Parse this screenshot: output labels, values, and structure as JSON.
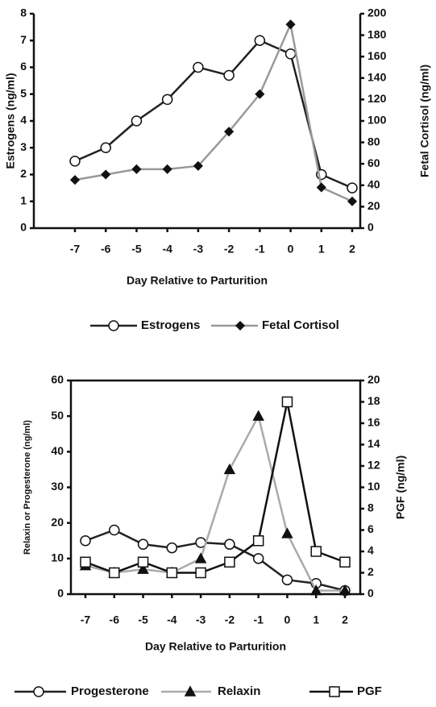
{
  "chart_data": [
    {
      "type": "line",
      "xlabel": "Day Relative to Parturition",
      "ylabel": "Estrogens (ng/ml)",
      "y2label": "Fetal Cortisol (ng/ml)",
      "categories": [
        "-7",
        "-6",
        "-5",
        "-4",
        "-3",
        "-2",
        "-1",
        "0",
        "1",
        "2"
      ],
      "ylim": [
        0,
        8
      ],
      "yticks": [
        0,
        1,
        2,
        3,
        4,
        5,
        6,
        7,
        8
      ],
      "y2lim": [
        0,
        200
      ],
      "y2ticks": [
        0,
        20,
        40,
        60,
        80,
        100,
        120,
        140,
        160,
        180,
        200
      ],
      "frame": false,
      "series": [
        {
          "name": "Estrogens",
          "color": "#222222",
          "marker": "circle",
          "values": [
            2.5,
            3,
            4,
            4.8,
            6,
            5.7,
            7,
            6.5,
            2,
            1.5
          ]
        },
        {
          "name": "Fetal Cortisol",
          "color": "#999999",
          "marker": "diamond",
          "axis": "y2",
          "values": [
            45,
            50,
            55,
            55,
            58,
            90,
            125,
            190,
            38,
            25
          ]
        }
      ]
    },
    {
      "type": "line",
      "xlabel": "Day Relative to Parturition",
      "ylabel": "Relaxin or Progesterone (ng/ml)",
      "y2label": "PGF (ng/ml)",
      "categories": [
        "-7",
        "-6",
        "-5",
        "-4",
        "-3",
        "-2",
        "-1",
        "0",
        "1",
        "2"
      ],
      "ylim": [
        0,
        60
      ],
      "yticks": [
        0,
        10,
        20,
        30,
        40,
        50,
        60
      ],
      "y2lim": [
        0,
        20
      ],
      "y2ticks": [
        0,
        2,
        4,
        6,
        8,
        10,
        12,
        14,
        16,
        18,
        20
      ],
      "frame": true,
      "series": [
        {
          "name": "Progesterone",
          "color": "#222222",
          "marker": "circle",
          "values": [
            15,
            18,
            14,
            13,
            14.5,
            14,
            10,
            4,
            3,
            1
          ]
        },
        {
          "name": "Relaxin",
          "color": "#aaaaaa",
          "marker": "triangle",
          "values": [
            8,
            6,
            7,
            6,
            10,
            35,
            50,
            17,
            1,
            1
          ]
        },
        {
          "name": "PGF",
          "color": "#111111",
          "marker": "square",
          "axis": "y2",
          "values": [
            3,
            2,
            3,
            2,
            2,
            3,
            5,
            18,
            4,
            3
          ]
        }
      ]
    }
  ]
}
